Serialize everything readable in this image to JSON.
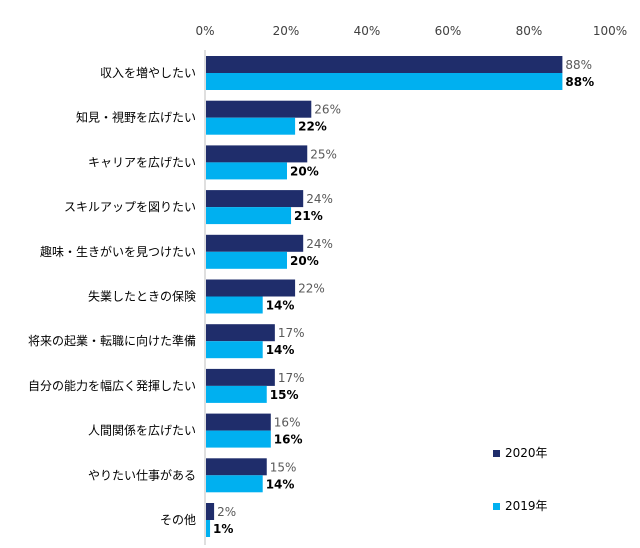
{
  "chart_data": {
    "type": "bar",
    "orientation": "horizontal",
    "categories": [
      "収入を増やしたい",
      "知見・視野を広げたい",
      "キャリアを広げたい",
      "スキルアップを図りたい",
      "趣味・生きがいを見つけたい",
      "失業したときの保険",
      "将来の起業・転職に向けた準備",
      "自分の能力を幅広く発揮したい",
      "人間関係を広げたい",
      "やりたい仕事がある",
      "その他"
    ],
    "series": [
      {
        "name": "2020年",
        "color": "#1f2d6b",
        "values": [
          88,
          26,
          25,
          24,
          24,
          22,
          17,
          17,
          16,
          15,
          2
        ]
      },
      {
        "name": "2019年",
        "color": "#00b0f0",
        "values": [
          88,
          22,
          20,
          21,
          20,
          14,
          14,
          15,
          16,
          14,
          1
        ]
      }
    ],
    "x_ticks": [
      "0%",
      "20%",
      "40%",
      "60%",
      "80%",
      "100%"
    ],
    "xlim": [
      0,
      100
    ],
    "legend_position": "bottom-right",
    "grid": false
  }
}
